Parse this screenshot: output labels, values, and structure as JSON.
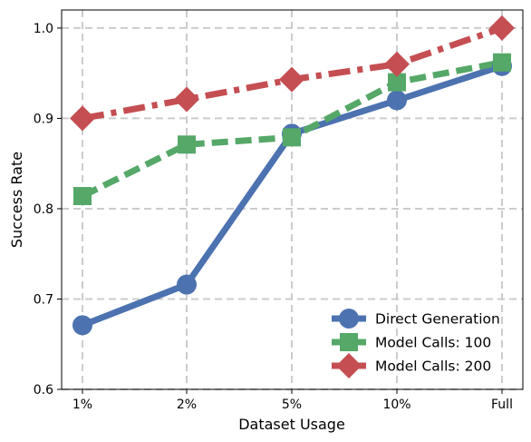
{
  "chart_data": {
    "type": "line",
    "title": "",
    "xlabel": "Dataset Usage",
    "ylabel": "Success Rate",
    "categories": [
      "1%",
      "2%",
      "5%",
      "10%",
      "Full"
    ],
    "ylim": [
      0.6,
      1.02
    ],
    "yticks": [
      "0.6",
      "0.7",
      "0.8",
      "0.9",
      "1.0"
    ],
    "grid": true,
    "legend_position": "lower-right",
    "series": [
      {
        "name": "Direct Generation",
        "values": [
          0.671,
          0.716,
          0.883,
          0.92,
          0.958
        ],
        "color": "#4c72b0",
        "marker": "circle",
        "line_style": "solid"
      },
      {
        "name": "Model Calls: 100",
        "values": [
          0.814,
          0.871,
          0.879,
          0.94,
          0.962
        ],
        "color": "#55a868",
        "marker": "square",
        "line_style": "dashed"
      },
      {
        "name": "Model Calls: 200",
        "values": [
          0.9,
          0.921,
          0.943,
          0.96,
          1.0
        ],
        "color": "#c44e52",
        "marker": "diamond",
        "line_style": "dashdot"
      }
    ]
  }
}
